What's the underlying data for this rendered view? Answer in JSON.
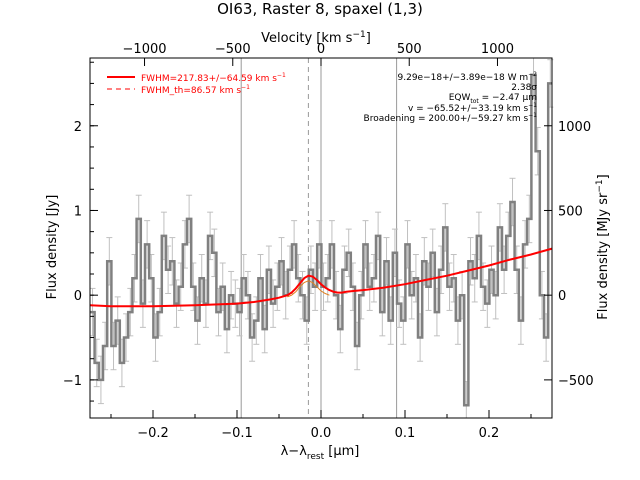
{
  "chart_data": {
    "type": "line",
    "title": "OI63, Raster 8, spaxel (1,3)",
    "xlabel": "λ−λ",
    "xlabel_sub": "rest",
    "xlabel_unit": " [μm]",
    "ylabel": "Flux density [Jy]",
    "top_axis_label": "Velocity [km s",
    "top_axis_label_sup": "−1",
    "top_axis_label_end": "]",
    "right_axis_label": "Flux density [MJy sr",
    "right_axis_label_sup": "−1",
    "right_axis_label_end": "]",
    "xlim": [
      -0.275,
      0.275
    ],
    "ylim": [
      -1.45,
      2.8
    ],
    "x_ticks": [
      -0.2,
      -0.1,
      0.0,
      0.1,
      0.2
    ],
    "x_tick_labels": [
      "−0.2",
      "−0.1",
      "0.0",
      "0.1",
      "0.2"
    ],
    "y_ticks": [
      -1,
      0,
      1,
      2
    ],
    "y_tick_labels": [
      "−1",
      "0",
      "1",
      "2"
    ],
    "top_ticks": [
      -1000,
      -500,
      0,
      500,
      1000
    ],
    "top_tick_labels": [
      "−1000",
      "−500",
      "0",
      "500",
      "1000"
    ],
    "velocity_per_micron": 4760,
    "right_ticks": [
      -500,
      0,
      500,
      1000
    ],
    "right_tick_labels": [
      "−500",
      "0",
      "500",
      "1000"
    ],
    "jy_per_mjysr": 0.002,
    "vlines_solid": [
      -0.095,
      0.0,
      0.09
    ],
    "vline_dashed": -0.015,
    "legend": [
      {
        "label": "FWHM=217.83+/−64.59 km s",
        "sup": "−1",
        "style": "solid",
        "color": "#ff0000"
      },
      {
        "label": "FWHM_th=86.57 km s",
        "sup": "−1",
        "style": "dashed",
        "color": "#ff0000"
      }
    ],
    "annotations": [
      "9.29e−18+/−3.89e−18 W m",
      "2.38σ",
      "EQW",
      "v = −65.52+/−33.19 km s",
      "Broadening = 200.00+/−59.27 km s"
    ],
    "annotation_extras": {
      "flux_sup": "−2",
      "eqw_sub": "tot",
      "eqw_value": " = −2.47 μm",
      "v_sup": "−1",
      "broadening_sup": "−1"
    },
    "series": [
      {
        "style": "steps",
        "color": "#808080",
        "x": [
          -0.272,
          -0.267,
          -0.262,
          -0.257,
          -0.252,
          -0.247,
          -0.242,
          -0.237,
          -0.232,
          -0.227,
          -0.222,
          -0.217,
          -0.212,
          -0.207,
          -0.202,
          -0.197,
          -0.192,
          -0.187,
          -0.182,
          -0.177,
          -0.172,
          -0.167,
          -0.162,
          -0.157,
          -0.152,
          -0.147,
          -0.142,
          -0.137,
          -0.132,
          -0.127,
          -0.122,
          -0.117,
          -0.112,
          -0.107,
          -0.102,
          -0.097,
          -0.092,
          -0.087,
          -0.082,
          -0.077,
          -0.072,
          -0.067,
          -0.062,
          -0.057,
          -0.052,
          -0.047,
          -0.042,
          -0.037,
          -0.032,
          -0.027,
          -0.022,
          -0.017,
          -0.012,
          -0.007,
          -0.002,
          0.003,
          0.008,
          0.013,
          0.018,
          0.023,
          0.028,
          0.033,
          0.038,
          0.043,
          0.048,
          0.053,
          0.058,
          0.063,
          0.068,
          0.073,
          0.078,
          0.083,
          0.088,
          0.093,
          0.098,
          0.103,
          0.108,
          0.113,
          0.118,
          0.123,
          0.128,
          0.133,
          0.138,
          0.143,
          0.148,
          0.153,
          0.158,
          0.163,
          0.168,
          0.173,
          0.178,
          0.183,
          0.188,
          0.193,
          0.198,
          0.203,
          0.208,
          0.213,
          0.218,
          0.223,
          0.228,
          0.233,
          0.238,
          0.243,
          0.248,
          0.253,
          0.258,
          0.263,
          0.268,
          0.273
        ],
        "y": [
          -0.2,
          -0.8,
          -1.0,
          -0.6,
          0.4,
          -0.6,
          -0.3,
          -0.8,
          -0.5,
          -0.2,
          0.2,
          0.9,
          -0.1,
          0.6,
          0.2,
          -0.5,
          -0.2,
          0.7,
          0.3,
          0.4,
          -0.1,
          0.1,
          0.6,
          0.9,
          0.1,
          -0.3,
          0.2,
          -0.1,
          0.7,
          0.5,
          -0.2,
          0.1,
          -0.4,
          0.0,
          -0.1,
          -0.2,
          0.2,
          0.0,
          -0.5,
          -0.3,
          0.2,
          -0.4,
          0.3,
          -0.1,
          0.1,
          0.4,
          0.0,
          0.3,
          0.6,
          0.2,
          0.0,
          -0.3,
          0.3,
          0.1,
          0.6,
          0.1,
          0.2,
          0.6,
          0.0,
          -0.4,
          0.3,
          0.5,
          0.1,
          -0.6,
          0.0,
          0.6,
          0.1,
          0.2,
          0.7,
          -0.2,
          0.4,
          -0.3,
          0.5,
          -0.1,
          -0.3,
          0.6,
          0.0,
          0.2,
          -0.5,
          0.4,
          0.1,
          0.5,
          -0.2,
          0.3,
          0.8,
          0.1,
          0.2,
          -0.3,
          0.0,
          -1.3,
          0.4,
          0.2,
          0.7,
          0.1,
          -0.1,
          0.3,
          0.0,
          0.8,
          0.3,
          0.7,
          1.1,
          0.3,
          -0.3,
          0.6,
          0.9,
          2.6,
          1.7,
          0.0,
          -0.5,
          2.5
        ],
        "error": 0.28
      },
      {
        "style": "line",
        "color": "#ff0000",
        "x": [
          -0.275,
          -0.25,
          -0.2,
          -0.15,
          -0.1,
          -0.08,
          -0.06,
          -0.05,
          -0.04,
          -0.035,
          -0.03,
          -0.025,
          -0.02,
          -0.015,
          -0.01,
          -0.005,
          0.0,
          0.005,
          0.01,
          0.015,
          0.02,
          0.025,
          0.03,
          0.04,
          0.05,
          0.075,
          0.1,
          0.125,
          0.15,
          0.175,
          0.2,
          0.225,
          0.25,
          0.275
        ],
        "y": [
          -0.12,
          -0.13,
          -0.13,
          -0.12,
          -0.1,
          -0.08,
          -0.05,
          -0.03,
          0.0,
          0.03,
          0.08,
          0.14,
          0.2,
          0.23,
          0.22,
          0.18,
          0.13,
          0.09,
          0.06,
          0.04,
          0.03,
          0.03,
          0.04,
          0.05,
          0.06,
          0.09,
          0.13,
          0.18,
          0.23,
          0.29,
          0.35,
          0.42,
          0.48,
          0.55
        ]
      },
      {
        "style": "line",
        "color": "#e08020",
        "x": [
          -0.04,
          -0.035,
          -0.03,
          -0.025,
          -0.02,
          -0.015,
          -0.01,
          -0.005,
          0.0,
          0.005,
          0.01
        ],
        "y": [
          -0.02,
          0.0,
          0.04,
          0.1,
          0.15,
          0.17,
          0.15,
          0.1,
          0.05,
          0.02,
          0.0
        ]
      }
    ]
  }
}
